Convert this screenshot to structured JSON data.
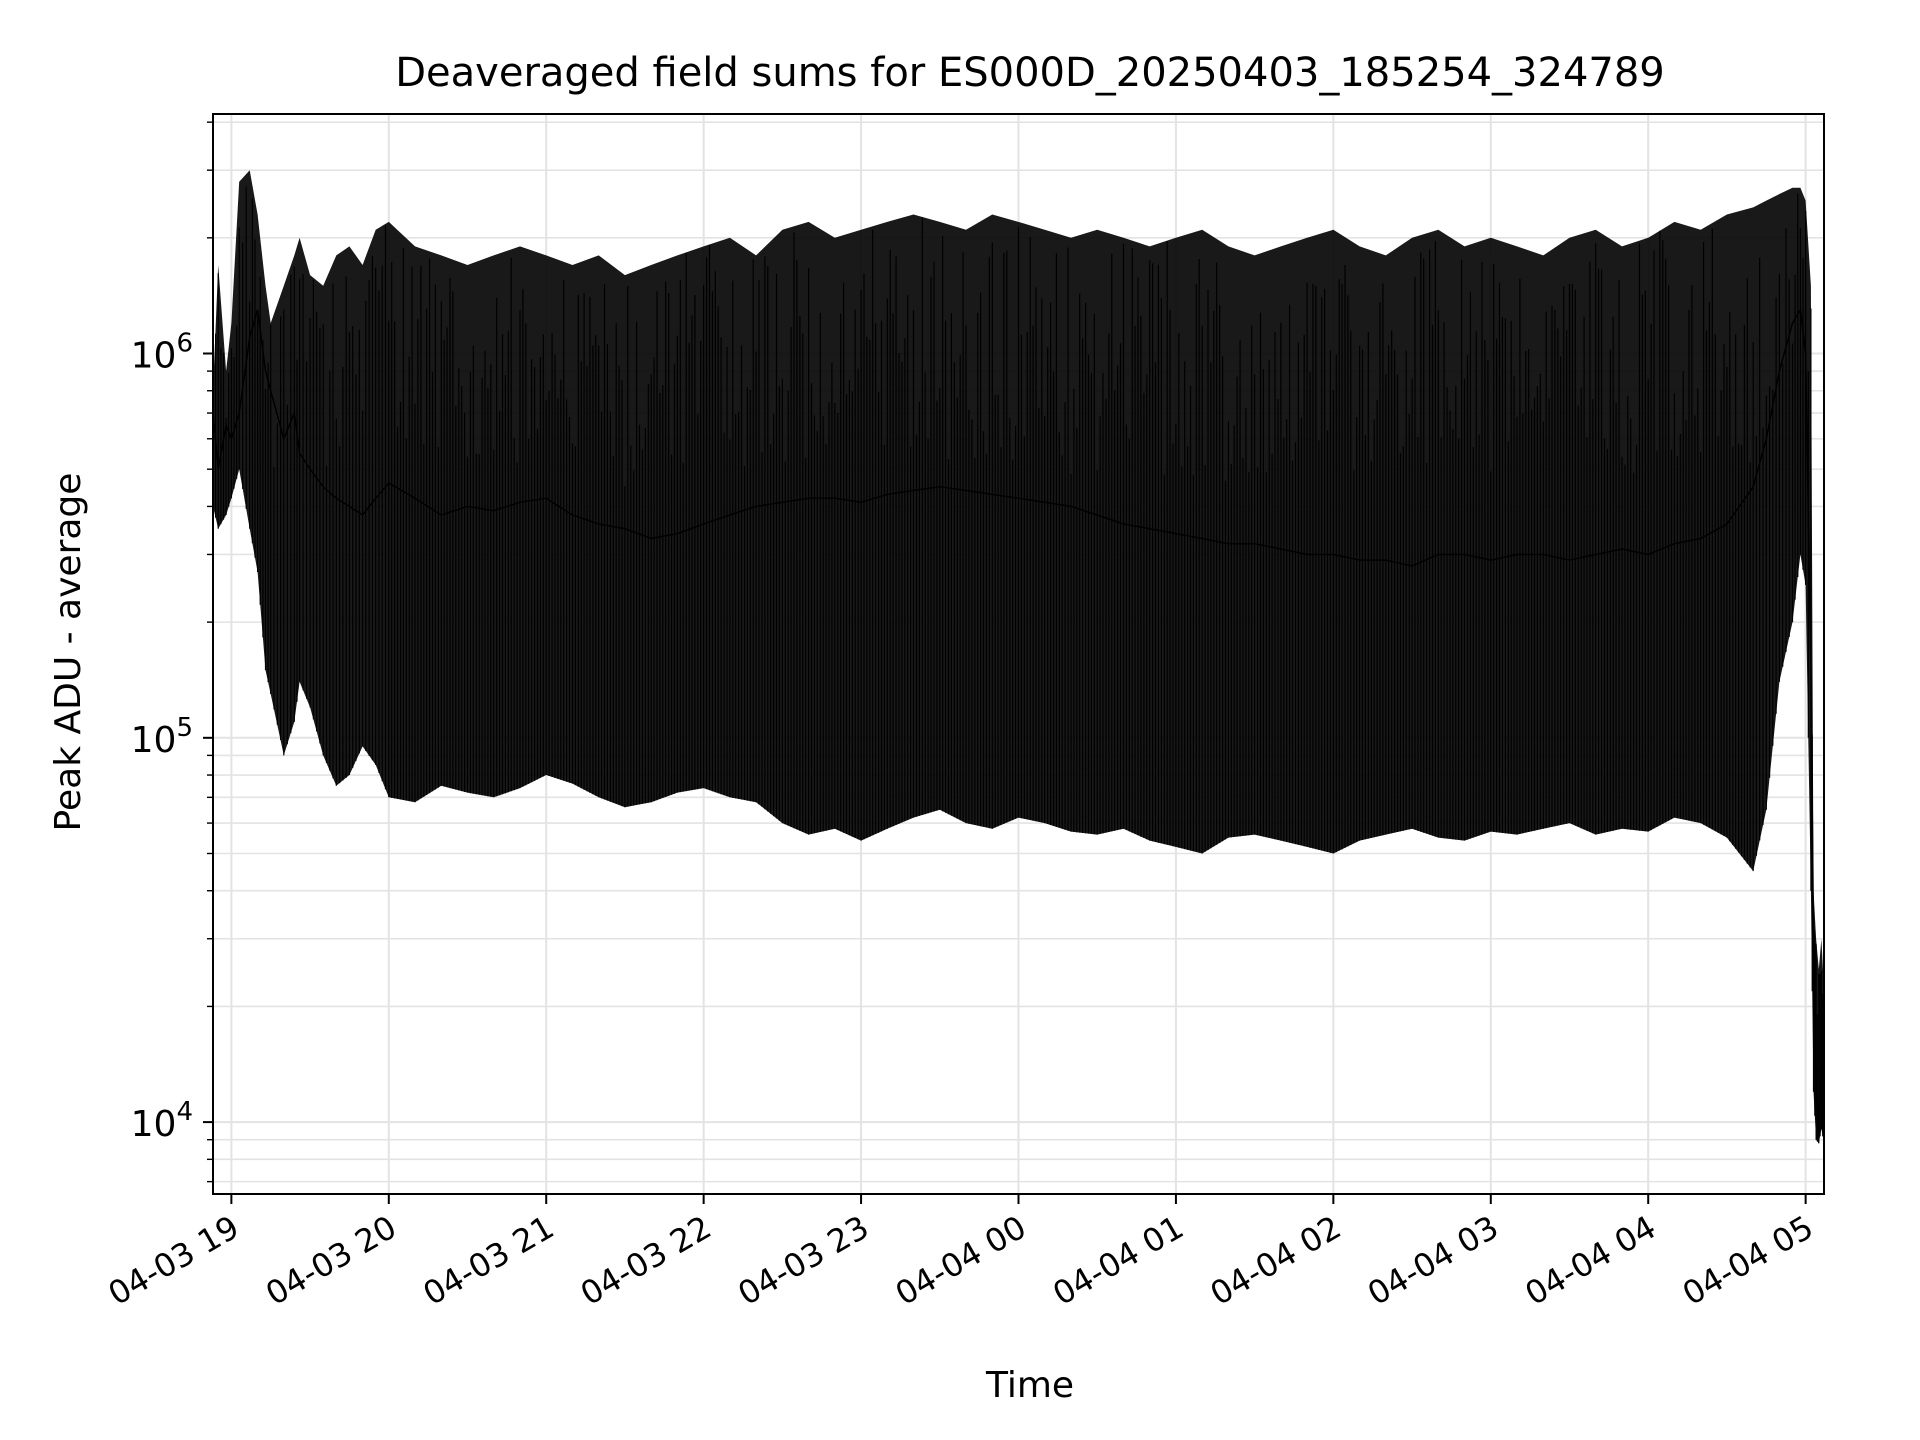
{
  "chart_data": {
    "type": "line",
    "title": "Deaveraged field sums for ES000D_20250403_185254_324789",
    "xlabel": "Time",
    "ylabel": "Peak ADU - average",
    "x_scale": "time",
    "y_scale": "log",
    "xlim": [
      "2025-04-03 18:53",
      "2025-04-04 05:07"
    ],
    "ylim": [
      6500,
      4200000
    ],
    "x_ticks": [
      {
        "value": "2025-04-03 19:00",
        "label": "04-03 19"
      },
      {
        "value": "2025-04-03 20:00",
        "label": "04-03 20"
      },
      {
        "value": "2025-04-03 21:00",
        "label": "04-03 21"
      },
      {
        "value": "2025-04-03 22:00",
        "label": "04-03 22"
      },
      {
        "value": "2025-04-03 23:00",
        "label": "04-03 23"
      },
      {
        "value": "2025-04-04 00:00",
        "label": "04-04 00"
      },
      {
        "value": "2025-04-04 01:00",
        "label": "04-04 01"
      },
      {
        "value": "2025-04-04 02:00",
        "label": "04-04 02"
      },
      {
        "value": "2025-04-04 03:00",
        "label": "04-04 03"
      },
      {
        "value": "2025-04-04 04:00",
        "label": "04-04 04"
      },
      {
        "value": "2025-04-04 05:00",
        "label": "04-04 05"
      }
    ],
    "y_ticks": [
      {
        "value": 10000,
        "base": "10",
        "exp": "4"
      },
      {
        "value": 100000,
        "base": "10",
        "exp": "5"
      },
      {
        "value": 1000000,
        "base": "10",
        "exp": "6"
      }
    ],
    "grid": true,
    "legend": "none",
    "line_color": "#000000",
    "series": [
      {
        "x": [
          "2025-04-03 18:53",
          "2025-04-03 18:55",
          "2025-04-03 18:58",
          "2025-04-03 19:00",
          "2025-04-03 19:03",
          "2025-04-03 19:07",
          "2025-04-03 19:10",
          "2025-04-03 19:13",
          "2025-04-03 19:15",
          "2025-04-03 19:20",
          "2025-04-03 19:24",
          "2025-04-03 19:26",
          "2025-04-03 19:30",
          "2025-04-03 19:35",
          "2025-04-03 19:40",
          "2025-04-03 19:45",
          "2025-04-03 19:50",
          "2025-04-03 19:55",
          "2025-04-03 20:00",
          "2025-04-03 20:10",
          "2025-04-03 20:20",
          "2025-04-03 20:30",
          "2025-04-03 20:40",
          "2025-04-03 20:50",
          "2025-04-03 21:00",
          "2025-04-03 21:10",
          "2025-04-03 21:20",
          "2025-04-03 21:30",
          "2025-04-03 21:40",
          "2025-04-03 21:50",
          "2025-04-03 22:00",
          "2025-04-03 22:10",
          "2025-04-03 22:20",
          "2025-04-03 22:30",
          "2025-04-03 22:40",
          "2025-04-03 22:50",
          "2025-04-03 23:00",
          "2025-04-03 23:10",
          "2025-04-03 23:20",
          "2025-04-03 23:30",
          "2025-04-03 23:40",
          "2025-04-03 23:50",
          "2025-04-04 00:00",
          "2025-04-04 00:10",
          "2025-04-04 00:20",
          "2025-04-04 00:30",
          "2025-04-04 00:40",
          "2025-04-04 00:50",
          "2025-04-04 01:00",
          "2025-04-04 01:10",
          "2025-04-04 01:20",
          "2025-04-04 01:30",
          "2025-04-04 01:40",
          "2025-04-04 01:50",
          "2025-04-04 02:00",
          "2025-04-04 02:10",
          "2025-04-04 02:20",
          "2025-04-04 02:30",
          "2025-04-04 02:40",
          "2025-04-04 02:50",
          "2025-04-04 03:00",
          "2025-04-04 03:10",
          "2025-04-04 03:20",
          "2025-04-04 03:30",
          "2025-04-04 03:40",
          "2025-04-04 03:50",
          "2025-04-04 04:00",
          "2025-04-04 04:10",
          "2025-04-04 04:20",
          "2025-04-04 04:30",
          "2025-04-04 04:40",
          "2025-04-04 04:45",
          "2025-04-04 04:50",
          "2025-04-04 04:55",
          "2025-04-04 04:58",
          "2025-04-04 05:00",
          "2025-04-04 05:02",
          "2025-04-04 05:03",
          "2025-04-04 05:04",
          "2025-04-04 05:05",
          "2025-04-04 05:06",
          "2025-04-04 05:07"
        ],
        "y": [
          700000,
          500000,
          650000,
          600000,
          700000,
          1100000,
          1300000,
          900000,
          800000,
          600000,
          700000,
          550000,
          500000,
          450000,
          420000,
          400000,
          380000,
          420000,
          460000,
          420000,
          380000,
          400000,
          390000,
          410000,
          420000,
          380000,
          360000,
          350000,
          330000,
          340000,
          360000,
          380000,
          400000,
          410000,
          420000,
          420000,
          410000,
          430000,
          440000,
          450000,
          440000,
          430000,
          420000,
          410000,
          400000,
          380000,
          360000,
          350000,
          340000,
          330000,
          320000,
          320000,
          310000,
          300000,
          300000,
          290000,
          290000,
          280000,
          300000,
          300000,
          290000,
          300000,
          300000,
          290000,
          300000,
          310000,
          300000,
          320000,
          330000,
          360000,
          450000,
          600000,
          900000,
          1200000,
          1300000,
          1000000,
          150000,
          30000,
          13000,
          9500,
          14000,
          12000
        ]
      }
    ],
    "y_range_band": {
      "upper": [
        800000,
        1700000,
        900000,
        1200000,
        2800000,
        3000000,
        2300000,
        1500000,
        1200000,
        1500000,
        1800000,
        2000000,
        1600000,
        1500000,
        1800000,
        1900000,
        1700000,
        2100000,
        2200000,
        1900000,
        1800000,
        1700000,
        1800000,
        1900000,
        1800000,
        1700000,
        1800000,
        1600000,
        1700000,
        1800000,
        1900000,
        2000000,
        1800000,
        2100000,
        2200000,
        2000000,
        2100000,
        2200000,
        2300000,
        2200000,
        2100000,
        2300000,
        2200000,
        2100000,
        2000000,
        2100000,
        2000000,
        1900000,
        2000000,
        2100000,
        1900000,
        1800000,
        1900000,
        2000000,
        2100000,
        1900000,
        1800000,
        2000000,
        2100000,
        1900000,
        2000000,
        1900000,
        1800000,
        2000000,
        2100000,
        1900000,
        2000000,
        2200000,
        2100000,
        2300000,
        2400000,
        2500000,
        2600000,
        2700000,
        2700000,
        2500000,
        1500000,
        40000,
        30000,
        25000,
        30000,
        22000
      ],
      "lower": [
        400000,
        350000,
        380000,
        420000,
        500000,
        350000,
        270000,
        150000,
        130000,
        90000,
        110000,
        140000,
        120000,
        90000,
        75000,
        80000,
        95000,
        85000,
        70000,
        68000,
        75000,
        72000,
        70000,
        74000,
        80000,
        76000,
        70000,
        66000,
        68000,
        72000,
        74000,
        70000,
        68000,
        60000,
        56000,
        58000,
        54000,
        58000,
        62000,
        65000,
        60000,
        58000,
        62000,
        60000,
        57000,
        56000,
        58000,
        54000,
        52000,
        50000,
        55000,
        56000,
        54000,
        52000,
        50000,
        54000,
        56000,
        58000,
        55000,
        54000,
        57000,
        56000,
        58000,
        60000,
        56000,
        58000,
        57000,
        62000,
        60000,
        55000,
        45000,
        65000,
        140000,
        200000,
        300000,
        250000,
        40000,
        12000,
        9000,
        8800,
        9600,
        8800
      ]
    }
  }
}
